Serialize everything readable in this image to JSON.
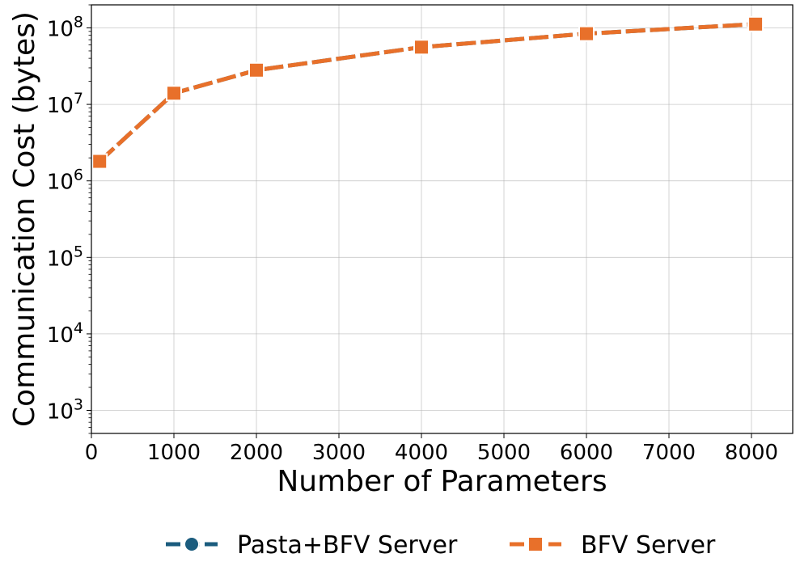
{
  "chart_data": {
    "type": "line",
    "xlabel": "Number of Parameters",
    "ylabel": "Communication Cost (bytes)",
    "x_scale": "linear",
    "y_scale": "log",
    "xlim": [
      0,
      8500
    ],
    "ylim": [
      500,
      200000000
    ],
    "x_ticks": [
      0,
      1000,
      2000,
      3000,
      4000,
      5000,
      6000,
      7000,
      8000
    ],
    "x_tick_labels": [
      "0",
      "1000",
      "2000",
      "3000",
      "4000",
      "5000",
      "6000",
      "7000",
      "8000"
    ],
    "y_ticks": [
      {
        "value": 1000,
        "base": "10",
        "exp": "3"
      },
      {
        "value": 10000,
        "base": "10",
        "exp": "4"
      },
      {
        "value": 100000,
        "base": "10",
        "exp": "5"
      },
      {
        "value": 1000000,
        "base": "10",
        "exp": "6"
      },
      {
        "value": 10000000,
        "base": "10",
        "exp": "7"
      },
      {
        "value": 100000000,
        "base": "10",
        "exp": "8"
      }
    ],
    "grid": true,
    "legend_position": "bottom-center",
    "x": [
      100,
      1000,
      2000,
      4000,
      6000,
      8050
    ],
    "series": [
      {
        "name": "Pasta+BFV Server",
        "color": "#1b5c7e",
        "marker": "circle",
        "values": [
          1800000,
          14000000,
          28000000,
          56000000,
          84000000,
          112000000
        ]
      },
      {
        "name": "BFV Server",
        "color": "#e8702a",
        "marker": "square",
        "values": [
          1800000,
          14000000,
          28000000,
          56000000,
          84000000,
          112000000
        ]
      }
    ]
  }
}
